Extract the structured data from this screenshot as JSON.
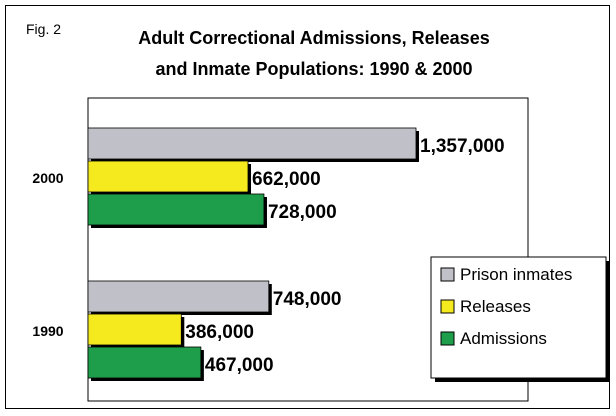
{
  "figure_label": "Fig. 2",
  "chart_data": {
    "type": "bar",
    "orientation": "horizontal",
    "title": "Adult Correctional Admissions, Releases and Inmate Populations: 1990 & 2000",
    "title_lines": [
      "Adult Correctional Admissions, Releases",
      "and Inmate Populations: 1990 & 2000"
    ],
    "categories": [
      "2000",
      "1990"
    ],
    "series": [
      {
        "name": "Prison inmates",
        "color": "#c0c0c8",
        "values": [
          1357000,
          748000
        ],
        "labels": [
          "1,357,000",
          "748,000"
        ]
      },
      {
        "name": "Releases",
        "color": "#f5ea1e",
        "values": [
          662000,
          386000
        ],
        "labels": [
          "662,000",
          "386,000"
        ]
      },
      {
        "name": "Admissions",
        "color": "#1e9e4a",
        "values": [
          728000,
          467000
        ],
        "labels": [
          "728,000",
          "467,000"
        ]
      }
    ],
    "legend": {
      "position": "bottom-right",
      "order": [
        "Prison inmates",
        "Releases",
        "Admissions"
      ]
    },
    "xlim": [
      0,
      1400000
    ],
    "grid": false,
    "xlabel": "",
    "ylabel": ""
  }
}
